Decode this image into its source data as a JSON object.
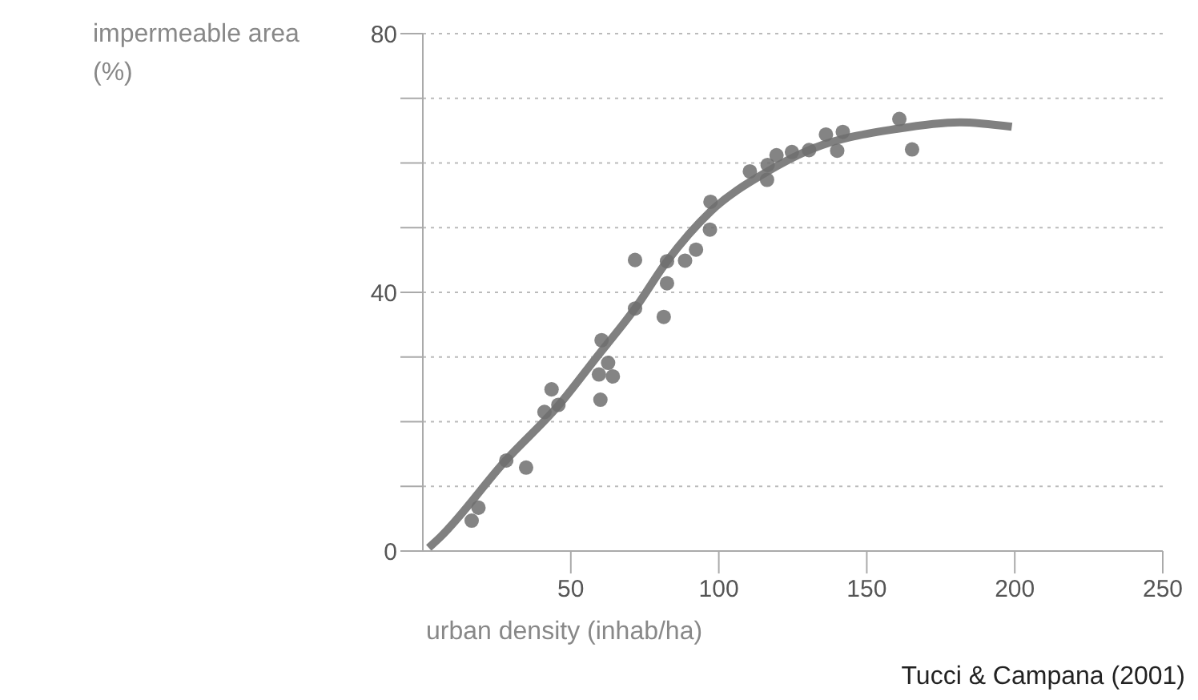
{
  "chart_data": {
    "type": "scatter",
    "xlabel": "urban density (inhab/ha)",
    "ylabel": "impermeable area (%)",
    "annotations": [
      "Tucci & Campana (2001)"
    ],
    "xlim": [
      0,
      250
    ],
    "xticks": [
      50,
      100,
      150,
      200,
      250
    ],
    "ylim": [
      0,
      80
    ],
    "yticks": [
      0,
      {
        "value": 10,
        "label": null
      },
      {
        "value": 20,
        "label": null
      },
      {
        "value": 30,
        "label": null
      },
      40,
      {
        "value": 50,
        "label": null
      },
      {
        "value": 60,
        "label": null
      },
      {
        "value": 70,
        "label": null
      },
      80
    ],
    "grid": "y",
    "marker": "circle",
    "series": [
      {
        "type": "scatter",
        "color": "#6e6e6e",
        "x": [
          16.5,
          18.8,
          28.2,
          34.9,
          41.1,
          43.5,
          45.8,
          60.4,
          62.6,
          59.5,
          64.2,
          60,
          71.7,
          71.7,
          82.5,
          82.5,
          81.4,
          88.6,
          92.3,
          97,
          97.2,
          110.5,
          116.5,
          116.3,
          119.5,
          124.7,
          130.5,
          136.2,
          141.9,
          140,
          161,
          165.3
        ],
        "values": [
          4.7,
          6.7,
          14,
          12.9,
          21.5,
          25,
          22.6,
          32.6,
          29.1,
          27.3,
          27,
          23.4,
          45,
          37.5,
          44.8,
          41.4,
          36.2,
          44.9,
          46.6,
          49.7,
          54,
          58.7,
          59.7,
          57.4,
          61.2,
          61.7,
          62,
          64.4,
          64.8,
          61.9,
          66.8,
          62.1
        ]
      },
      {
        "type": "line",
        "color": "#808080",
        "marker": "none",
        "x": [
          2,
          6,
          28,
          46,
          58.6,
          71.7,
          82.5,
          97.2,
          116.5,
          130.5,
          160.4,
          181.4,
          199
        ],
        "values": [
          0.5,
          2.2,
          14,
          22.6,
          29.9,
          37.5,
          44.8,
          52.5,
          58.7,
          62,
          65.3,
          66.3,
          65.6
        ]
      }
    ]
  }
}
